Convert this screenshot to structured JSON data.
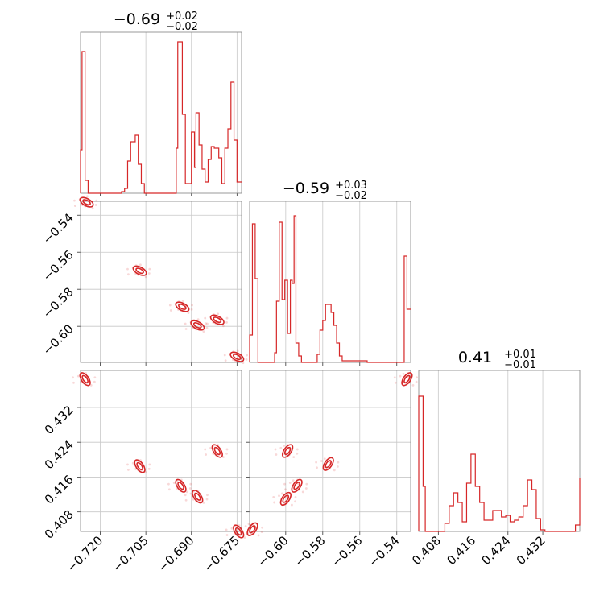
{
  "chart_data": {
    "type": "corner",
    "color": "#d62728",
    "parameters": [
      {
        "title": {
          "main": "−0.69",
          "plus": "+0.02",
          "minus": "−0.02"
        },
        "range": [
          -0.7265,
          -0.6735
        ],
        "ticks": [
          -0.72,
          -0.705,
          -0.69,
          -0.675
        ],
        "tick_labels": [
          "−0.720",
          "−0.705",
          "−0.690",
          "−0.675"
        ],
        "hist": [
          [
            -0.7265,
            0.27
          ],
          [
            -0.7255,
            0.88
          ],
          [
            -0.7245,
            0.1
          ],
          [
            -0.7235,
            0.0
          ],
          [
            -0.7125,
            0.01
          ],
          [
            -0.7115,
            0.03
          ],
          [
            -0.7105,
            0.2
          ],
          [
            -0.7095,
            0.31
          ],
          [
            -0.7085,
            0.35
          ],
          [
            -0.7075,
            0.18
          ],
          [
            -0.7065,
            0.06
          ],
          [
            -0.7055,
            0.0
          ],
          [
            -0.6955,
            0.28
          ],
          [
            -0.6945,
            0.95
          ],
          [
            -0.6935,
            0.48
          ],
          [
            -0.6925,
            0.06
          ],
          [
            -0.6915,
            0.06
          ],
          [
            -0.6905,
            0.38
          ],
          [
            -0.6895,
            0.15
          ],
          [
            -0.6885,
            0.49
          ],
          [
            -0.6875,
            0.3
          ],
          [
            -0.6865,
            0.15
          ],
          [
            -0.6855,
            0.07
          ],
          [
            -0.6845,
            0.2
          ],
          [
            -0.6835,
            0.28
          ],
          [
            -0.6825,
            0.28
          ],
          [
            -0.6815,
            0.22
          ],
          [
            -0.6805,
            0.06
          ],
          [
            -0.6795,
            0.28
          ],
          [
            -0.6785,
            0.38
          ],
          [
            -0.6775,
            0.68
          ],
          [
            -0.6765,
            0.6
          ],
          [
            -0.6755,
            0.07
          ],
          [
            -0.6745,
            0.07
          ]
        ]
      },
      {
        "title": {
          "main": "−0.59",
          "plus": "+0.03",
          "minus": "−0.02"
        },
        "range": [
          -0.6195,
          -0.5325
        ],
        "ticks": [
          -0.6,
          -0.58,
          -0.56,
          -0.54
        ],
        "tick_labels": [
          "−0.60",
          "−0.58",
          "−0.56",
          "−0.54"
        ],
        "hist": [
          [
            -0.6195,
            0.17
          ],
          [
            -0.618,
            0.87
          ],
          [
            -0.6165,
            0.51
          ],
          [
            -0.615,
            0.0
          ],
          [
            -0.606,
            0.06
          ],
          [
            -0.6045,
            0.38
          ],
          [
            -0.603,
            0.86
          ],
          [
            -0.6015,
            0.38
          ],
          [
            -0.6,
            0.51
          ],
          [
            -0.5985,
            0.18
          ],
          [
            -0.597,
            0.51
          ],
          [
            -0.5955,
            0.48
          ],
          [
            -0.594,
            0.09
          ],
          [
            -0.5925,
            0.01
          ],
          [
            -0.591,
            0.0
          ],
          [
            -0.5955,
            0.0
          ]
        ]
      },
      {
        "title": {
          "main": "0.41",
          "plus": "+0.01",
          "minus": "−0.01"
        },
        "range": [
          0.4035,
          0.4405
        ],
        "ticks": [
          0.408,
          0.416,
          0.424,
          0.432
        ],
        "tick_labels": [
          "0.408",
          "0.416",
          "0.424",
          "0.432"
        ],
        "hist": [
          [
            0.4035,
            0.84
          ],
          [
            0.4045,
            0.0
          ],
          [
            0.4085,
            0.0
          ],
          [
            0.41,
            0.06
          ],
          [
            0.411,
            0.16
          ],
          [
            0.412,
            0.24
          ],
          [
            0.413,
            0.17
          ],
          [
            0.414,
            0.06
          ],
          [
            0.415,
            0.28
          ],
          [
            0.416,
            0.17
          ],
          [
            0.417,
            0.07
          ],
          [
            0.418,
            0.07
          ],
          [
            0.419,
            0.07
          ],
          [
            0.42,
            0.25
          ],
          [
            0.421,
            0.15
          ],
          [
            0.422,
            0.22
          ],
          [
            0.423,
            0.13
          ],
          [
            0.424,
            0.0
          ],
          [
            0.425,
            0.0
          ]
        ]
      }
    ],
    "hist_steps": [
      [
        [
          -0.7265,
          0.27
        ],
        [
          -0.726,
          0.88
        ],
        [
          -0.725,
          0.08
        ],
        [
          -0.724,
          0.0
        ],
        [
          -0.713,
          0.01
        ],
        [
          -0.712,
          0.03
        ],
        [
          -0.711,
          0.2
        ],
        [
          -0.71,
          0.32
        ],
        [
          -0.7085,
          0.36
        ],
        [
          -0.7075,
          0.18
        ],
        [
          -0.7065,
          0.06
        ],
        [
          -0.7055,
          0.0
        ],
        [
          -0.695,
          0.28
        ],
        [
          -0.6945,
          0.94
        ],
        [
          -0.693,
          0.49
        ],
        [
          -0.692,
          0.06
        ],
        [
          -0.691,
          0.06
        ],
        [
          -0.69,
          0.38
        ],
        [
          -0.689,
          0.16
        ],
        [
          -0.6885,
          0.5
        ],
        [
          -0.6875,
          0.3
        ],
        [
          -0.6865,
          0.15
        ],
        [
          -0.6855,
          0.07
        ],
        [
          -0.6845,
          0.21
        ],
        [
          -0.6835,
          0.29
        ],
        [
          -0.6825,
          0.28
        ],
        [
          -0.681,
          0.22
        ],
        [
          -0.68,
          0.06
        ],
        [
          -0.679,
          0.28
        ],
        [
          -0.678,
          0.4
        ],
        [
          -0.677,
          0.69
        ],
        [
          -0.676,
          0.33
        ],
        [
          -0.675,
          0.07
        ],
        [
          -0.6735,
          0.07
        ]
      ],
      [
        [
          -0.6195,
          0.17
        ],
        [
          -0.618,
          0.86
        ],
        [
          -0.6165,
          0.52
        ],
        [
          -0.615,
          0.0
        ],
        [
          -0.606,
          0.06
        ],
        [
          -0.605,
          0.38
        ],
        [
          -0.6035,
          0.87
        ],
        [
          -0.602,
          0.39
        ],
        [
          -0.6005,
          0.51
        ],
        [
          -0.599,
          0.18
        ],
        [
          -0.5975,
          0.51
        ],
        [
          -0.5965,
          0.49
        ],
        [
          -0.5955,
          0.91
        ],
        [
          -0.5945,
          0.12
        ],
        [
          -0.593,
          0.04
        ],
        [
          -0.5915,
          0.0
        ],
        [
          -0.583,
          0.05
        ],
        [
          -0.5815,
          0.2
        ],
        [
          -0.58,
          0.26
        ],
        [
          -0.5785,
          0.36
        ],
        [
          -0.577,
          0.36
        ],
        [
          -0.5755,
          0.31
        ],
        [
          -0.574,
          0.23
        ],
        [
          -0.5725,
          0.12
        ],
        [
          -0.571,
          0.04
        ],
        [
          -0.5695,
          0.01
        ],
        [
          -0.568,
          0.01
        ],
        [
          -0.556,
          0.0
        ],
        [
          -0.536,
          0.66
        ],
        [
          -0.5345,
          0.33
        ],
        [
          -0.5325,
          0.33
        ]
      ],
      [
        [
          0.4035,
          0.84
        ],
        [
          0.4045,
          0.28
        ],
        [
          0.405,
          0.0
        ],
        [
          0.4085,
          0.0
        ],
        [
          0.4095,
          0.05
        ],
        [
          0.4105,
          0.16
        ],
        [
          0.4115,
          0.24
        ],
        [
          0.4125,
          0.18
        ],
        [
          0.4135,
          0.06
        ],
        [
          0.4145,
          0.3
        ],
        [
          0.4155,
          0.48
        ],
        [
          0.4165,
          0.28
        ],
        [
          0.4175,
          0.18
        ],
        [
          0.4185,
          0.07
        ],
        [
          0.4195,
          0.07
        ],
        [
          0.4205,
          0.13
        ],
        [
          0.4215,
          0.13
        ],
        [
          0.4225,
          0.09
        ],
        [
          0.4235,
          0.1
        ],
        [
          0.4245,
          0.06
        ],
        [
          0.4255,
          0.07
        ],
        [
          0.4265,
          0.09
        ],
        [
          0.4275,
          0.16
        ],
        [
          0.4285,
          0.32
        ],
        [
          0.4295,
          0.26
        ],
        [
          0.4305,
          0.08
        ],
        [
          0.4315,
          0.01
        ],
        [
          0.4325,
          0.0
        ],
        [
          0.4385,
          0.0
        ],
        [
          0.4395,
          0.04
        ],
        [
          0.4405,
          0.33
        ]
      ]
    ],
    "contour_blobs": {
      "1_0": [
        [
          -0.7245,
          -0.533
        ],
        [
          -0.707,
          -0.57
        ],
        [
          -0.693,
          -0.5895
        ],
        [
          -0.688,
          -0.5995
        ],
        [
          -0.6815,
          -0.5965
        ],
        [
          -0.675,
          -0.6165
        ]
      ],
      "2_0": [
        [
          -0.725,
          0.4385
        ],
        [
          -0.707,
          0.4185
        ],
        [
          -0.6935,
          0.414
        ],
        [
          -0.688,
          0.4115
        ],
        [
          -0.6815,
          0.422
        ],
        [
          -0.6745,
          0.4035
        ]
      ],
      "2_1": [
        [
          -0.618,
          0.404
        ],
        [
          -0.6,
          0.411
        ],
        [
          -0.599,
          0.422
        ],
        [
          -0.594,
          0.414
        ],
        [
          -0.577,
          0.419
        ],
        [
          -0.5345,
          0.4385
        ]
      ]
    }
  }
}
